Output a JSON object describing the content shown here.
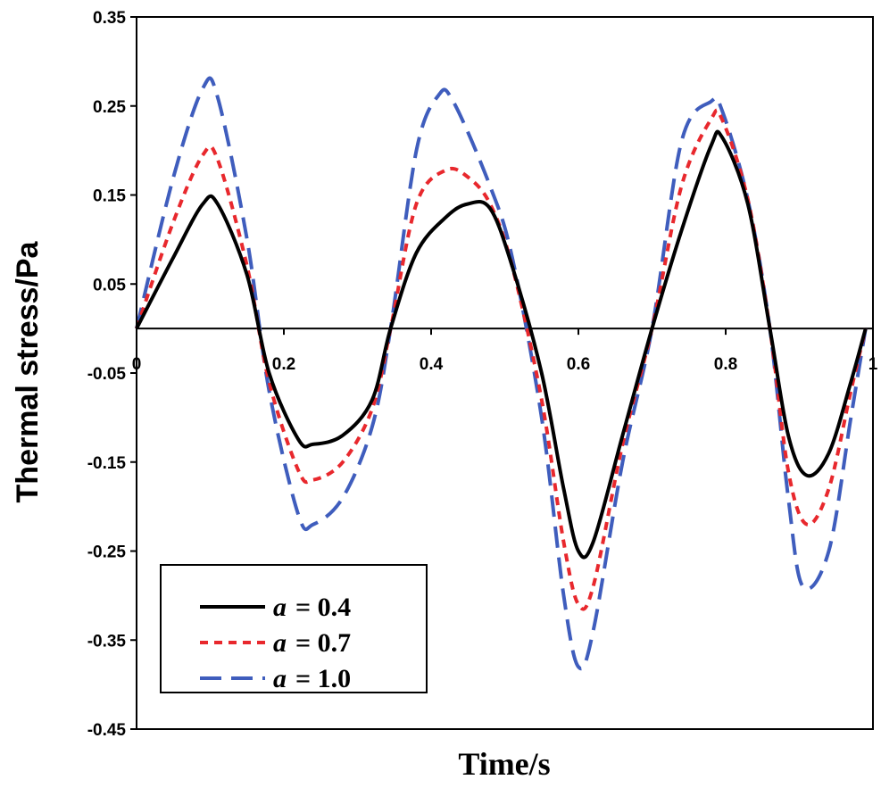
{
  "chart_data": {
    "type": "line",
    "title": "",
    "xlabel": "Time/s",
    "ylabel": "Thermal stress/Pa",
    "xlim": [
      0,
      1
    ],
    "ylim": [
      -0.45,
      0.35
    ],
    "grid": false,
    "legend_position": "bottom-left",
    "x_ticks": [
      "0",
      "0.2",
      "0.4",
      "0.6",
      "0.8",
      "1"
    ],
    "y_ticks": [
      "0.35",
      "0.25",
      "0.15",
      "0.05",
      "-0.05",
      "-0.15",
      "-0.25",
      "-0.35",
      "-0.45"
    ],
    "series": [
      {
        "name": "a = 0.4",
        "legend_var": "a",
        "legend_value": "= 0.4",
        "color": "#000000",
        "dash": "solid",
        "x": [
          0,
          0.05,
          0.09,
          0.11,
          0.15,
          0.18,
          0.22,
          0.24,
          0.28,
          0.32,
          0.345,
          0.38,
          0.42,
          0.45,
          0.48,
          0.51,
          0.55,
          0.58,
          0.6,
          0.62,
          0.66,
          0.7,
          0.74,
          0.78,
          0.795,
          0.83,
          0.86,
          0.885,
          0.91,
          0.94,
          0.97,
          0.99
        ],
        "y": [
          0,
          0.08,
          0.14,
          0.14,
          0.06,
          -0.05,
          -0.125,
          -0.13,
          -0.12,
          -0.08,
          0,
          0.085,
          0.125,
          0.14,
          0.135,
          0.07,
          -0.05,
          -0.18,
          -0.25,
          -0.24,
          -0.12,
          0,
          0.11,
          0.205,
          0.215,
          0.14,
          0,
          -0.12,
          -0.165,
          -0.14,
          -0.06,
          0
        ]
      },
      {
        "name": "a = 0.7",
        "legend_var": "a",
        "legend_value": "= 0.7",
        "color": "#e8282d",
        "dash": "short-dash",
        "x": [
          0,
          0.05,
          0.09,
          0.11,
          0.15,
          0.18,
          0.22,
          0.24,
          0.28,
          0.32,
          0.345,
          0.38,
          0.42,
          0.45,
          0.48,
          0.51,
          0.55,
          0.58,
          0.6,
          0.62,
          0.66,
          0.7,
          0.74,
          0.78,
          0.795,
          0.83,
          0.86,
          0.885,
          0.91,
          0.94,
          0.97,
          0.99
        ],
        "y": [
          0,
          0.12,
          0.195,
          0.19,
          0.07,
          -0.06,
          -0.16,
          -0.17,
          -0.15,
          -0.09,
          0,
          0.14,
          0.178,
          0.17,
          0.14,
          0.07,
          -0.08,
          -0.24,
          -0.31,
          -0.29,
          -0.13,
          0,
          0.16,
          0.235,
          0.235,
          0.145,
          0,
          -0.16,
          -0.22,
          -0.18,
          -0.07,
          0
        ]
      },
      {
        "name": "a = 1.0",
        "legend_var": "a",
        "legend_value": "= 1.0",
        "color": "#3f5dbd",
        "dash": "long-dash",
        "x": [
          0,
          0.05,
          0.09,
          0.11,
          0.15,
          0.18,
          0.22,
          0.24,
          0.28,
          0.32,
          0.345,
          0.38,
          0.41,
          0.43,
          0.48,
          0.51,
          0.55,
          0.58,
          0.6,
          0.62,
          0.66,
          0.7,
          0.74,
          0.78,
          0.795,
          0.83,
          0.86,
          0.885,
          0.905,
          0.94,
          0.97,
          0.99
        ],
        "y": [
          0,
          0.17,
          0.27,
          0.26,
          0.1,
          -0.07,
          -0.21,
          -0.22,
          -0.19,
          -0.11,
          0,
          0.2,
          0.262,
          0.255,
          0.16,
          0.08,
          -0.1,
          -0.3,
          -0.38,
          -0.34,
          -0.15,
          0,
          0.21,
          0.255,
          0.245,
          0.145,
          0,
          -0.19,
          -0.29,
          -0.25,
          -0.1,
          0
        ]
      }
    ]
  }
}
